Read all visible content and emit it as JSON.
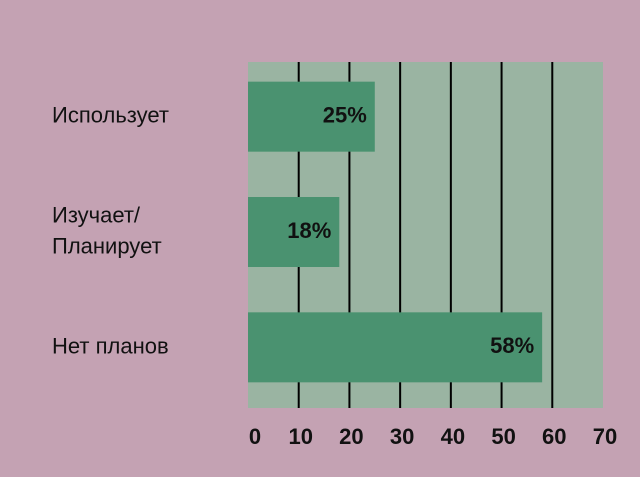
{
  "chart_data": {
    "type": "bar",
    "orientation": "horizontal",
    "categories": [
      "Использует",
      "Изучает/\nПланирует",
      "Нет планов"
    ],
    "values": [
      25,
      18,
      58
    ],
    "value_labels": [
      "25%",
      "18%",
      "58%"
    ],
    "color": "#4a9270",
    "xlim": [
      0,
      70
    ],
    "xticks": [
      0,
      10,
      20,
      30,
      40,
      50,
      60,
      70
    ],
    "grid": true
  }
}
